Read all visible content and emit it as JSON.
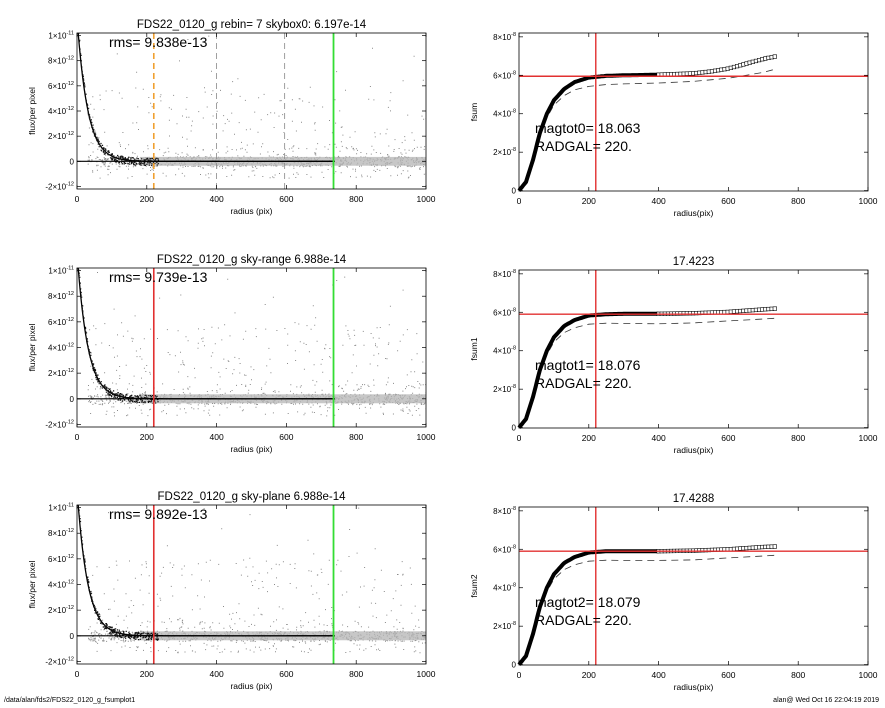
{
  "footer": {
    "path": "/data/alan/fds2/FDS22_0120_g_fsumplot1",
    "stamp": "alan@  Wed Oct 16 22:04:19 2019"
  },
  "chart_data": [
    {
      "id": "profile-1",
      "type": "scatter",
      "title": "FDS22_0120_g rebin= 7    skybox0:  6.197e-14",
      "annotation": "rms= 9.838e-13",
      "xlabel": "radius (pix)",
      "ylabel": "flux/per pixel",
      "xlim": [
        0,
        1000
      ],
      "ylim": [
        -2.2e-12,
        1.02e-11
      ],
      "xticks": [
        {
          "v": 0,
          "t": "0"
        },
        {
          "v": 200,
          "t": "200"
        },
        {
          "v": 400,
          "t": "400"
        },
        {
          "v": 600,
          "t": "600"
        },
        {
          "v": 800,
          "t": "800"
        },
        {
          "v": 1000,
          "t": "1000"
        }
      ],
      "yticks": [
        {
          "v": -2e-12,
          "b": "-2×10",
          "e": "-12"
        },
        {
          "v": 0,
          "b": "0",
          "e": ""
        },
        {
          "v": 2e-12,
          "b": "2×10",
          "e": "-12"
        },
        {
          "v": 4e-12,
          "b": "4×10",
          "e": "-12"
        },
        {
          "v": 6e-12,
          "b": "6×10",
          "e": "-12"
        },
        {
          "v": 8e-12,
          "b": "8×10",
          "e": "-12"
        },
        {
          "v": 1e-11,
          "b": "1×10",
          "e": "-11"
        }
      ],
      "vlines": [
        {
          "x": 220,
          "color": "#f0a030",
          "dash": "6,4",
          "width": 1.6
        },
        {
          "x": 400,
          "color": "#888888",
          "dash": "6,4",
          "width": 0.8
        },
        {
          "x": 595,
          "color": "#888888",
          "dash": "6,4",
          "width": 0.8
        },
        {
          "x": 735,
          "color": "#33dd33",
          "dash": "",
          "width": 1.8
        }
      ],
      "seed": 11
    },
    {
      "id": "growth-1",
      "type": "line",
      "title": "",
      "annotations": [
        "magtot0=  18.063",
        "RADGAL=    220."
      ],
      "xlabel": "radius(pix)",
      "ylabel": "fsum",
      "xlim": [
        0,
        1000
      ],
      "ylim": [
        -2e-10,
        8.2e-08
      ],
      "xticks": [
        {
          "v": 0,
          "t": "0"
        },
        {
          "v": 200,
          "t": "200"
        },
        {
          "v": 400,
          "t": "400"
        },
        {
          "v": 600,
          "t": "600"
        },
        {
          "v": 800,
          "t": "800"
        },
        {
          "v": 1000,
          "t": "1000"
        }
      ],
      "yticks": [
        {
          "v": 0,
          "b": "0",
          "e": ""
        },
        {
          "v": 2e-08,
          "b": "2×10",
          "e": "-8"
        },
        {
          "v": 4e-08,
          "b": "4×10",
          "e": "-8"
        },
        {
          "v": 6e-08,
          "b": "6×10",
          "e": "-8"
        },
        {
          "v": 8e-08,
          "b": "8×10",
          "e": "-8"
        }
      ],
      "hline": 5.95e-08,
      "vline": 220,
      "curve": [
        [
          0,
          0
        ],
        [
          20,
          4.5e-09
        ],
        [
          40,
          1.6e-08
        ],
        [
          60,
          3e-08
        ],
        [
          80,
          4e-08
        ],
        [
          100,
          4.7e-08
        ],
        [
          130,
          5.3e-08
        ],
        [
          160,
          5.65e-08
        ],
        [
          200,
          5.88e-08
        ],
        [
          250,
          5.97e-08
        ],
        [
          300,
          6e-08
        ],
        [
          400,
          6.03e-08
        ],
        [
          500,
          6.1e-08
        ],
        [
          550,
          6.2e-08
        ],
        [
          600,
          6.35e-08
        ],
        [
          650,
          6.6e-08
        ],
        [
          700,
          6.85e-08
        ],
        [
          740,
          7e-08
        ]
      ],
      "dashed": [
        [
          0,
          0
        ],
        [
          20,
          4e-09
        ],
        [
          40,
          1.5e-08
        ],
        [
          60,
          2.8e-08
        ],
        [
          80,
          3.8e-08
        ],
        [
          100,
          4.45e-08
        ],
        [
          130,
          4.95e-08
        ],
        [
          160,
          5.25e-08
        ],
        [
          200,
          5.42e-08
        ],
        [
          250,
          5.52e-08
        ],
        [
          300,
          5.55e-08
        ],
        [
          400,
          5.6e-08
        ],
        [
          500,
          5.68e-08
        ],
        [
          600,
          5.85e-08
        ],
        [
          700,
          6.15e-08
        ],
        [
          740,
          6.35e-08
        ]
      ]
    },
    {
      "id": "profile-2",
      "type": "scatter",
      "title": "FDS22_0120_g sky-range  6.988e-14",
      "annotation": "rms= 9.739e-13",
      "xlabel": "radius (pix)",
      "ylabel": "flux/per pixel",
      "xlim": [
        0,
        1000
      ],
      "ylim": [
        -2.2e-12,
        1.02e-11
      ],
      "xticks": [
        {
          "v": 0,
          "t": "0"
        },
        {
          "v": 200,
          "t": "200"
        },
        {
          "v": 400,
          "t": "400"
        },
        {
          "v": 600,
          "t": "600"
        },
        {
          "v": 800,
          "t": "800"
        },
        {
          "v": 1000,
          "t": "1000"
        }
      ],
      "yticks": [
        {
          "v": -2e-12,
          "b": "-2×10",
          "e": "-12"
        },
        {
          "v": 0,
          "b": "0",
          "e": ""
        },
        {
          "v": 2e-12,
          "b": "2×10",
          "e": "-12"
        },
        {
          "v": 4e-12,
          "b": "4×10",
          "e": "-12"
        },
        {
          "v": 6e-12,
          "b": "6×10",
          "e": "-12"
        },
        {
          "v": 8e-12,
          "b": "8×10",
          "e": "-12"
        },
        {
          "v": 1e-11,
          "b": "1×10",
          "e": "-11"
        }
      ],
      "vlines": [
        {
          "x": 220,
          "color": "#e23030",
          "dash": "",
          "width": 1.6
        },
        {
          "x": 735,
          "color": "#33dd33",
          "dash": "",
          "width": 1.8
        }
      ],
      "seed": 23
    },
    {
      "id": "growth-2",
      "type": "line",
      "title": "17.4223",
      "annotations": [
        "magtot1=  18.076",
        "RADGAL=    220."
      ],
      "xlabel": "radius(pix)",
      "ylabel": "fsum1",
      "xlim": [
        0,
        1000
      ],
      "ylim": [
        -2e-10,
        8.2e-08
      ],
      "xticks": [
        {
          "v": 0,
          "t": "0"
        },
        {
          "v": 200,
          "t": "200"
        },
        {
          "v": 400,
          "t": "400"
        },
        {
          "v": 600,
          "t": "600"
        },
        {
          "v": 800,
          "t": "800"
        },
        {
          "v": 1000,
          "t": "1000"
        }
      ],
      "yticks": [
        {
          "v": 0,
          "b": "0",
          "e": ""
        },
        {
          "v": 2e-08,
          "b": "2×10",
          "e": "-8"
        },
        {
          "v": 4e-08,
          "b": "4×10",
          "e": "-8"
        },
        {
          "v": 6e-08,
          "b": "6×10",
          "e": "-8"
        },
        {
          "v": 8e-08,
          "b": "8×10",
          "e": "-8"
        }
      ],
      "hline": 5.9e-08,
      "vline": 220,
      "curve": [
        [
          0,
          0
        ],
        [
          20,
          4.5e-09
        ],
        [
          40,
          1.6e-08
        ],
        [
          60,
          3e-08
        ],
        [
          80,
          4e-08
        ],
        [
          100,
          4.7e-08
        ],
        [
          130,
          5.3e-08
        ],
        [
          160,
          5.6e-08
        ],
        [
          200,
          5.83e-08
        ],
        [
          250,
          5.9e-08
        ],
        [
          300,
          5.92e-08
        ],
        [
          400,
          5.92e-08
        ],
        [
          500,
          5.95e-08
        ],
        [
          600,
          6.02e-08
        ],
        [
          700,
          6.15e-08
        ],
        [
          740,
          6.2e-08
        ]
      ],
      "dashed": [
        [
          0,
          0
        ],
        [
          20,
          4e-09
        ],
        [
          40,
          1.5e-08
        ],
        [
          60,
          2.8e-08
        ],
        [
          80,
          3.8e-08
        ],
        [
          100,
          4.45e-08
        ],
        [
          130,
          4.95e-08
        ],
        [
          160,
          5.2e-08
        ],
        [
          200,
          5.38e-08
        ],
        [
          250,
          5.43e-08
        ],
        [
          300,
          5.42e-08
        ],
        [
          400,
          5.4e-08
        ],
        [
          500,
          5.45e-08
        ],
        [
          600,
          5.55e-08
        ],
        [
          700,
          5.65e-08
        ],
        [
          740,
          5.7e-08
        ]
      ]
    },
    {
      "id": "profile-3",
      "type": "scatter",
      "title": "FDS22_0120_g sky-plane  6.988e-14",
      "annotation": "rms= 9.892e-13",
      "xlabel": "radius (pix)",
      "ylabel": "flux/per pixel",
      "xlim": [
        0,
        1000
      ],
      "ylim": [
        -2.2e-12,
        1.02e-11
      ],
      "xticks": [
        {
          "v": 0,
          "t": "0"
        },
        {
          "v": 200,
          "t": "200"
        },
        {
          "v": 400,
          "t": "400"
        },
        {
          "v": 600,
          "t": "600"
        },
        {
          "v": 800,
          "t": "800"
        },
        {
          "v": 1000,
          "t": "1000"
        }
      ],
      "yticks": [
        {
          "v": -2e-12,
          "b": "-2×10",
          "e": "-12"
        },
        {
          "v": 0,
          "b": "0",
          "e": ""
        },
        {
          "v": 2e-12,
          "b": "2×10",
          "e": "-12"
        },
        {
          "v": 4e-12,
          "b": "4×10",
          "e": "-12"
        },
        {
          "v": 6e-12,
          "b": "6×10",
          "e": "-12"
        },
        {
          "v": 8e-12,
          "b": "8×10",
          "e": "-12"
        },
        {
          "v": 1e-11,
          "b": "1×10",
          "e": "-11"
        }
      ],
      "vlines": [
        {
          "x": 220,
          "color": "#e23030",
          "dash": "",
          "width": 1.6
        },
        {
          "x": 735,
          "color": "#33dd33",
          "dash": "",
          "width": 1.8
        }
      ],
      "seed": 37
    },
    {
      "id": "growth-3",
      "type": "line",
      "title": "17.4288",
      "annotations": [
        "magtot2=  18.079",
        "RADGAL=    220."
      ],
      "xlabel": "radius(pix)",
      "ylabel": "fsum2",
      "xlim": [
        0,
        1000
      ],
      "ylim": [
        -2e-10,
        8.2e-08
      ],
      "xticks": [
        {
          "v": 0,
          "t": "0"
        },
        {
          "v": 200,
          "t": "200"
        },
        {
          "v": 400,
          "t": "400"
        },
        {
          "v": 600,
          "t": "600"
        },
        {
          "v": 800,
          "t": "800"
        },
        {
          "v": 1000,
          "t": "1000"
        }
      ],
      "yticks": [
        {
          "v": 0,
          "b": "0",
          "e": ""
        },
        {
          "v": 2e-08,
          "b": "2×10",
          "e": "-8"
        },
        {
          "v": 4e-08,
          "b": "4×10",
          "e": "-8"
        },
        {
          "v": 6e-08,
          "b": "6×10",
          "e": "-8"
        },
        {
          "v": 8e-08,
          "b": "8×10",
          "e": "-8"
        }
      ],
      "hline": 5.9e-08,
      "vline": 220,
      "curve": [
        [
          0,
          0
        ],
        [
          20,
          4.5e-09
        ],
        [
          40,
          1.6e-08
        ],
        [
          60,
          3e-08
        ],
        [
          80,
          4e-08
        ],
        [
          100,
          4.7e-08
        ],
        [
          130,
          5.3e-08
        ],
        [
          160,
          5.6e-08
        ],
        [
          200,
          5.83e-08
        ],
        [
          250,
          5.9e-08
        ],
        [
          300,
          5.9e-08
        ],
        [
          400,
          5.9e-08
        ],
        [
          500,
          5.93e-08
        ],
        [
          600,
          6e-08
        ],
        [
          700,
          6.12e-08
        ],
        [
          740,
          6.15e-08
        ]
      ],
      "dashed": [
        [
          0,
          0
        ],
        [
          20,
          4e-09
        ],
        [
          40,
          1.5e-08
        ],
        [
          60,
          2.8e-08
        ],
        [
          80,
          3.8e-08
        ],
        [
          100,
          4.45e-08
        ],
        [
          130,
          4.95e-08
        ],
        [
          160,
          5.2e-08
        ],
        [
          200,
          5.38e-08
        ],
        [
          250,
          5.43e-08
        ],
        [
          300,
          5.42e-08
        ],
        [
          400,
          5.42e-08
        ],
        [
          500,
          5.45e-08
        ],
        [
          600,
          5.55e-08
        ],
        [
          700,
          5.65e-08
        ],
        [
          740,
          5.7e-08
        ]
      ]
    }
  ]
}
